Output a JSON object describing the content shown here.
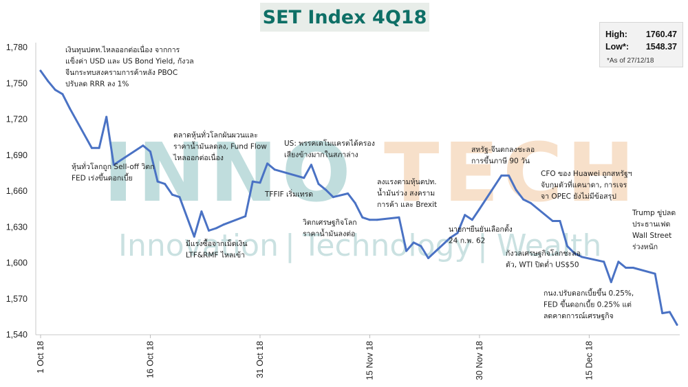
{
  "title": "SET Index 4Q18",
  "stats": {
    "high_label": "High:",
    "high_value": "1760.47",
    "low_label": "Low*:",
    "low_value": "1548.37",
    "note": "*As of 27/12/18"
  },
  "watermark": {
    "brand_left": "INNO",
    "brand_right": "TECH",
    "tagline": [
      "Innovation",
      "Technology",
      "Wealth"
    ],
    "divider": "|"
  },
  "colors": {
    "line": "#4a72c4",
    "title": "#0e6f66",
    "watermark_teal": "#8ec3c3",
    "watermark_orange": "#f2c79f"
  },
  "chart_data": {
    "type": "line",
    "title": "SET Index 4Q18",
    "ylim": [
      1540,
      1780
    ],
    "yticks": [
      1540,
      1570,
      1600,
      1630,
      1660,
      1690,
      1720,
      1750,
      1780
    ],
    "ytick_labels": [
      "1,540",
      "1,570",
      "1,600",
      "1,630",
      "1,660",
      "1,690",
      "1,720",
      "1,750",
      "1,780"
    ],
    "xticks": [
      "1 Oct 18",
      "16 Oct 18",
      "31 Oct 18",
      "15 Nov 18",
      "30 Nov 18",
      "15 Dec 18"
    ],
    "xtick_days": [
      0,
      15,
      30,
      45,
      60,
      75
    ],
    "series": [
      {
        "x": [
          0,
          1,
          2,
          3,
          4,
          7,
          8,
          9,
          10,
          14,
          15,
          16,
          17,
          18,
          19,
          21,
          22,
          23,
          24,
          25,
          28,
          29,
          30,
          31,
          32,
          36,
          37,
          38,
          39,
          40,
          42,
          43,
          44,
          45,
          46,
          49,
          50,
          51,
          52,
          53,
          56,
          57,
          58,
          59,
          60,
          63,
          64,
          65,
          66,
          67,
          70,
          71,
          72,
          73,
          74,
          77,
          78,
          79,
          80,
          81,
          84,
          85,
          86,
          87
        ],
        "y": [
          1760.5,
          1752.0,
          1744.6,
          1741.0,
          1729.0,
          1696.0,
          1696.0,
          1722.0,
          1682.0,
          1698.0,
          1693.0,
          1668.0,
          1666.0,
          1657.0,
          1655.0,
          1622.0,
          1643.0,
          1627.0,
          1629.0,
          1632.0,
          1639.0,
          1668.0,
          1667.0,
          1683.0,
          1678.0,
          1671.0,
          1682.0,
          1666.0,
          1661.0,
          1655.0,
          1658.0,
          1650.0,
          1638.0,
          1636.0,
          1636.0,
          1638.0,
          1610.0,
          1617.0,
          1614.0,
          1604.0,
          1621.0,
          1625.0,
          1640.0,
          1636.0,
          1645.0,
          1673.0,
          1673.0,
          1661.0,
          1653.0,
          1650.0,
          1635.0,
          1635.0,
          1614.0,
          1608.0,
          1605.0,
          1601.0,
          1584.0,
          1601.0,
          1596.0,
          1596.0,
          1591.0,
          1558.0,
          1559.0,
          1548.4
        ]
      }
    ],
    "annotations": [
      {
        "lines": [
          "เงินทุนปตท.ไหลออกต่อเนื่อง จากการ",
          "แข็งค่า USD และ US Bond Yield, กังวล",
          "จีนกระทบสงครามการค้าหลัง PBOC",
          "ปรับลด RRR ลง 1%"
        ]
      },
      {
        "lines": [
          "หุ้นทั่วโลกถูก Sell-off วิตก",
          "FED เร่งขึ้นดอกเบี้ย"
        ]
      },
      {
        "lines": [
          "ตลาดหุ้นทั่วโลกผันผวนและ",
          "ราคาน้ำมันลดลง, Fund Flow",
          "ไหลออกต่อเนื่อง"
        ]
      },
      {
        "lines": [
          "มีแรงซื้อจากเม็ดเงิน",
          "LTF&RMF ไหลเข้า"
        ]
      },
      {
        "lines": [
          "US: พรรคเดโมแครตได้ครอง",
          "เสียงข้างมากในสภาล่าง"
        ]
      },
      {
        "lines": [
          "TFFIF เริ่มเทรด"
        ]
      },
      {
        "lines": [
          "วิตกเศรษฐกิจโลก",
          "ราคาน้ำมันลงต่อ"
        ]
      },
      {
        "lines": [
          "ลงแรงตามหุ้นตปท.",
          "น้ำมันร่วง สงคราม",
          "การค้า และ Brexit"
        ]
      },
      {
        "lines": [
          "นายกฯยืนยันเลือกตั้ง",
          "24 ก.พ. 62"
        ]
      },
      {
        "lines": [
          "สหรัฐ-จีนตกลงชะลอ",
          "การขึ้นภาษี 90 วัน"
        ]
      },
      {
        "lines": [
          "กังวลเศรษฐกิจโลกชะลอ",
          "ตัว, WTI ปิดต่ำ US$50"
        ]
      },
      {
        "lines": [
          "CFO ของ Huawei ถูกสหรัฐฯ",
          "จับกุมตัวที่แคนาดา, การเจร",
          "จา OPEC ยังไม่มีข้อสรุป"
        ]
      },
      {
        "lines": [
          "กนง.ปรับดอกเบี้ยขึ้น 0.25%,",
          "FED ขึ้นดอกเบี้ย 0.25% แต่",
          "ลดคาดการณ์เศรษฐกิจ"
        ]
      },
      {
        "lines": [
          "Trump ขู่ปลด",
          "ประธานเฟด",
          "Wall Street",
          "ร่วงหนัก"
        ]
      }
    ]
  }
}
